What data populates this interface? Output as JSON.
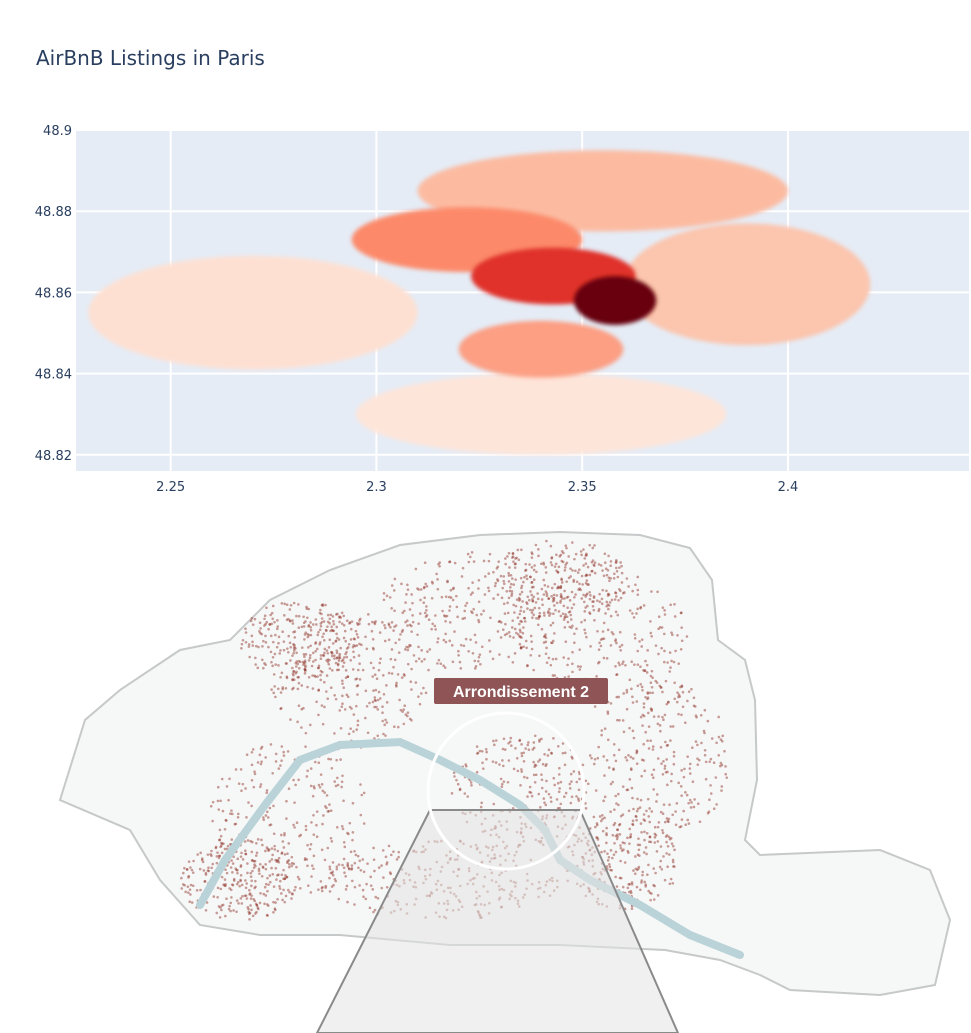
{
  "chart_data": [
    {
      "type": "scatter",
      "title": "AirBnB Listings in Paris",
      "xlabel": "",
      "ylabel": "",
      "xlim": [
        2.227,
        2.444
      ],
      "ylim": [
        48.816,
        48.9
      ],
      "x_ticks": [
        2.25,
        2.3,
        2.35,
        2.4
      ],
      "x_tick_labels": [
        "2.25",
        "2.3",
        "2.35",
        "2.4"
      ],
      "y_ticks": [
        48.82,
        48.84,
        48.86,
        48.88,
        48.9
      ],
      "y_tick_labels": [
        "48.82",
        "48.84",
        "48.86",
        "48.88",
        "48.9"
      ],
      "grid": true,
      "legend": "none",
      "colorscale": "Reds",
      "description_regions": [
        {
          "name": "center-dark",
          "color": "#67000d",
          "x": 2.358,
          "y": 48.858,
          "rx": 0.01,
          "ry": 0.006
        },
        {
          "name": "center-red",
          "color": "#e0332a",
          "x": 2.343,
          "y": 48.864,
          "rx": 0.02,
          "ry": 0.007
        },
        {
          "name": "mid-orange-west",
          "color": "#fc8a6a",
          "x": 2.322,
          "y": 48.873,
          "rx": 0.028,
          "ry": 0.008
        },
        {
          "name": "mid-orange-south",
          "color": "#fc9f83",
          "x": 2.34,
          "y": 48.846,
          "rx": 0.02,
          "ry": 0.007
        },
        {
          "name": "light-north",
          "color": "#fcbba1",
          "x": 2.355,
          "y": 48.885,
          "rx": 0.045,
          "ry": 0.01
        },
        {
          "name": "light-east",
          "color": "#fcc5ad",
          "x": 2.39,
          "y": 48.862,
          "rx": 0.03,
          "ry": 0.015
        },
        {
          "name": "light-west",
          "color": "#fee0d2",
          "x": 2.27,
          "y": 48.855,
          "rx": 0.04,
          "ry": 0.014
        },
        {
          "name": "light-south",
          "color": "#fee5d9",
          "x": 2.34,
          "y": 48.83,
          "rx": 0.045,
          "ry": 0.01
        }
      ]
    },
    {
      "type": "scatter",
      "annotation": "Arrondissement 2"
    }
  ],
  "colors": {
    "plot_bg": "#e5ecf6",
    "grid": "#ffffff",
    "dot": "#8b2a1f",
    "map_bg": "#f4f5f5",
    "river": "#b9d3d8"
  }
}
